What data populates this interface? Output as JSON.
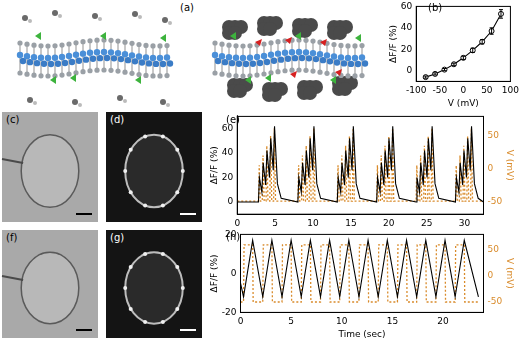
{
  "panels": [
    {
      "label": "(a)"
    },
    {
      "label": "(c)"
    },
    {
      "label": "(d)"
    },
    {
      "label": "(f)"
    },
    {
      "label": "(g)"
    }
  ],
  "chart_data": [
    {
      "title": "(b)",
      "type": "line",
      "x_label": "V (mV)",
      "y_label": "ΔF/F (%)",
      "x": [
        -80,
        -60,
        -40,
        -20,
        0,
        20,
        40,
        60,
        80
      ],
      "values": [
        -6,
        -3,
        1,
        6,
        12,
        19,
        27,
        37,
        53
      ],
      "errors": [
        1,
        1,
        1,
        1,
        1.5,
        2,
        2,
        3,
        4
      ],
      "color": "#000000",
      "marker": "circle",
      "xlim": [
        -100,
        100
      ],
      "xticks": [
        -100,
        -50,
        0,
        50,
        100
      ],
      "ylim": [
        -10,
        60
      ],
      "yticks": [
        0,
        20,
        40,
        60
      ],
      "grid": false
    },
    {
      "title": "(e)",
      "type": "line",
      "y_label": "ΔF/F (%)",
      "y2_label": "V (mV)",
      "xlim": [
        0,
        32.5
      ],
      "xticks": [
        0,
        5,
        10,
        15,
        20,
        25,
        30
      ],
      "ylim": [
        -10,
        70
      ],
      "yticks": [
        0,
        20,
        40,
        60
      ],
      "y2lim": [
        -70,
        80
      ],
      "y2ticks": [
        -50,
        0,
        50
      ],
      "grid": false,
      "series": [
        {
          "color": "#000000",
          "x": [
            0,
            2.8,
            2.92,
            3.25,
            3.42,
            3.75,
            3.92,
            4.25,
            4.42,
            4.75,
            4.92,
            5.3,
            5.8,
            8.0,
            8.12,
            8.45,
            8.62,
            8.95,
            9.12,
            9.45,
            9.62,
            9.95,
            10.12,
            10.5,
            11.0,
            13.2,
            13.32,
            13.65,
            13.82,
            14.15,
            14.32,
            14.65,
            14.82,
            15.15,
            15.32,
            15.7,
            16.2,
            18.4,
            18.52,
            18.85,
            19.02,
            19.35,
            19.52,
            19.85,
            20.02,
            20.35,
            20.52,
            20.9,
            21.4,
            23.6,
            23.72,
            24.05,
            24.22,
            24.55,
            24.72,
            25.05,
            25.22,
            25.55,
            25.72,
            26.1,
            26.6,
            28.8,
            28.92,
            29.25,
            29.42,
            29.75,
            29.92,
            30.25,
            30.42,
            30.75,
            30.92,
            31.3,
            31.8,
            32.5
          ],
          "values": [
            0,
            0,
            20,
            8,
            32,
            14,
            42,
            20,
            52,
            26,
            62,
            15,
            3,
            0,
            20,
            8,
            32,
            14,
            42,
            20,
            52,
            26,
            62,
            15,
            3,
            0,
            20,
            8,
            32,
            14,
            42,
            20,
            52,
            26,
            62,
            15,
            3,
            0,
            20,
            8,
            32,
            14,
            42,
            20,
            52,
            26,
            62,
            15,
            3,
            0,
            20,
            8,
            32,
            14,
            42,
            20,
            52,
            26,
            62,
            15,
            3,
            0,
            20,
            8,
            32,
            14,
            42,
            20,
            52,
            26,
            62,
            15,
            3,
            0
          ]
        },
        {
          "color": "#d98b2b",
          "axis": "y2",
          "line_style": "dotted",
          "x": [
            0,
            2.8,
            2.9,
            3.05,
            3.3,
            3.4,
            3.55,
            3.8,
            3.9,
            4.05,
            4.3,
            4.4,
            4.55,
            4.8,
            4.9,
            5.05,
            8.0,
            8.1,
            8.25,
            8.5,
            8.6,
            8.75,
            9.0,
            9.1,
            9.25,
            9.5,
            9.6,
            9.75,
            10.0,
            10.1,
            10.25,
            13.2,
            13.3,
            13.45,
            13.7,
            13.8,
            13.95,
            14.2,
            14.3,
            14.45,
            14.7,
            14.8,
            14.95,
            15.2,
            15.3,
            15.45,
            18.4,
            18.5,
            18.65,
            18.9,
            19.0,
            19.15,
            19.4,
            19.5,
            19.65,
            19.9,
            20.0,
            20.15,
            20.4,
            20.5,
            20.65,
            23.6,
            23.7,
            23.85,
            24.1,
            24.2,
            24.35,
            24.6,
            24.7,
            24.85,
            25.1,
            25.2,
            25.35,
            25.6,
            25.7,
            25.85,
            28.8,
            28.9,
            29.05,
            29.3,
            29.4,
            29.55,
            29.8,
            29.9,
            30.05,
            30.3,
            30.4,
            30.55,
            30.8,
            30.9,
            31.05,
            32.5
          ],
          "values": [
            -50,
            -50,
            5,
            -50,
            -50,
            20,
            -50,
            -50,
            35,
            -50,
            -50,
            50,
            -50,
            -50,
            62,
            -50,
            -50,
            5,
            -50,
            -50,
            20,
            -50,
            -50,
            35,
            -50,
            -50,
            50,
            -50,
            -50,
            62,
            -50,
            -50,
            5,
            -50,
            -50,
            20,
            -50,
            -50,
            35,
            -50,
            -50,
            50,
            -50,
            -50,
            62,
            -50,
            -50,
            5,
            -50,
            -50,
            20,
            -50,
            -50,
            35,
            -50,
            -50,
            50,
            -50,
            -50,
            62,
            -50,
            -50,
            5,
            -50,
            -50,
            20,
            -50,
            -50,
            35,
            -50,
            -50,
            50,
            -50,
            -50,
            62,
            -50,
            -50,
            5,
            -50,
            -50,
            20,
            -50,
            -50,
            35,
            -50,
            -50,
            50,
            -50,
            -50,
            62,
            -50,
            -50
          ]
        }
      ]
    },
    {
      "title": "(h)",
      "type": "line",
      "x_label": "Time (sec)",
      "y_label": "ΔF/F (%)",
      "y2_label": "V (mV)",
      "xlim": [
        0,
        24
      ],
      "xticks": [
        0,
        5,
        10,
        15,
        20
      ],
      "ylim": [
        -20,
        20
      ],
      "yticks": [
        -20,
        0,
        20
      ],
      "y2lim": [
        -70,
        80
      ],
      "y2ticks": [
        -50,
        0,
        50
      ],
      "grid": false,
      "series": [
        {
          "color": "#000000",
          "x": [
            0,
            0.3,
            1.2,
            2.2,
            3.1,
            4.1,
            5.0,
            6.0,
            6.9,
            7.9,
            8.8,
            9.8,
            10.7,
            11.7,
            12.6,
            13.6,
            14.5,
            15.5,
            16.4,
            17.4,
            18.3,
            19.3,
            20.2,
            21.2,
            22.1,
            23.5
          ],
          "values": [
            -5,
            -12,
            17,
            -12,
            17,
            -12,
            17,
            -12,
            17,
            -12,
            17,
            -12,
            17,
            -12,
            17,
            -12,
            17,
            -12,
            17,
            -12,
            17,
            -12,
            17,
            -12,
            17,
            -12
          ]
        },
        {
          "color": "#d98b2b",
          "axis": "y2",
          "line_style": "dotted",
          "x": [
            0,
            0.3,
            0.35,
            1.2,
            1.25,
            2.2,
            2.25,
            3.1,
            3.15,
            4.1,
            4.15,
            5.0,
            5.05,
            6.0,
            6.05,
            6.9,
            6.95,
            7.9,
            7.95,
            8.8,
            8.85,
            9.8,
            9.85,
            10.7,
            10.75,
            11.7,
            11.75,
            12.6,
            12.65,
            13.6,
            13.65,
            14.5,
            14.55,
            15.5,
            15.55,
            16.4,
            16.45,
            17.4,
            17.45,
            18.3,
            18.35,
            19.3,
            19.35,
            20.2,
            20.25,
            21.2,
            21.25,
            22.1,
            22.15,
            23.5
          ],
          "values": [
            -50,
            -50,
            60,
            60,
            -50,
            -50,
            60,
            60,
            -50,
            -50,
            60,
            60,
            -50,
            -50,
            60,
            60,
            -50,
            -50,
            60,
            60,
            -50,
            -50,
            60,
            60,
            -50,
            -50,
            60,
            60,
            -50,
            -50,
            60,
            60,
            -50,
            -50,
            60,
            60,
            -50,
            -50,
            60,
            60,
            -50,
            -50,
            60,
            60,
            -50,
            -50,
            60,
            60,
            -50,
            -50
          ]
        }
      ]
    }
  ]
}
